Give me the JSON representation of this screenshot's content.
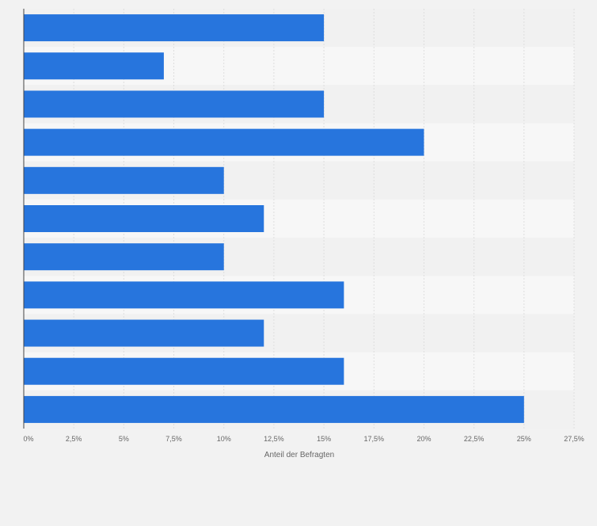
{
  "chart_data": {
    "type": "bar",
    "orientation": "horizontal",
    "title": "",
    "xlabel": "Anteil der Befragten",
    "ylabel": "",
    "categories": [
      "",
      "",
      "",
      "",
      "",
      "",
      "",
      "",
      "",
      "",
      ""
    ],
    "values": [
      15,
      7,
      15,
      20,
      10,
      12,
      10,
      16,
      12,
      16,
      25
    ],
    "xlim": [
      0,
      27.5
    ],
    "ticks": [
      0,
      2.5,
      5,
      7.5,
      10,
      12.5,
      15,
      17.5,
      20,
      22.5,
      25,
      27.5
    ],
    "tick_labels": [
      "0%",
      "2,5%",
      "5%",
      "7,5%",
      "10%",
      "12,5%",
      "15%",
      "17,5%",
      "20%",
      "22,5%",
      "25%",
      "27,5%"
    ],
    "grid": true,
    "legend": "none",
    "colors": {
      "bar": "#2775dd",
      "band_light": "#f7f7f7",
      "band_dark": "#f1f1f1",
      "grid": "#dedede",
      "axis": "#444444",
      "tick_text": "#666666"
    }
  }
}
